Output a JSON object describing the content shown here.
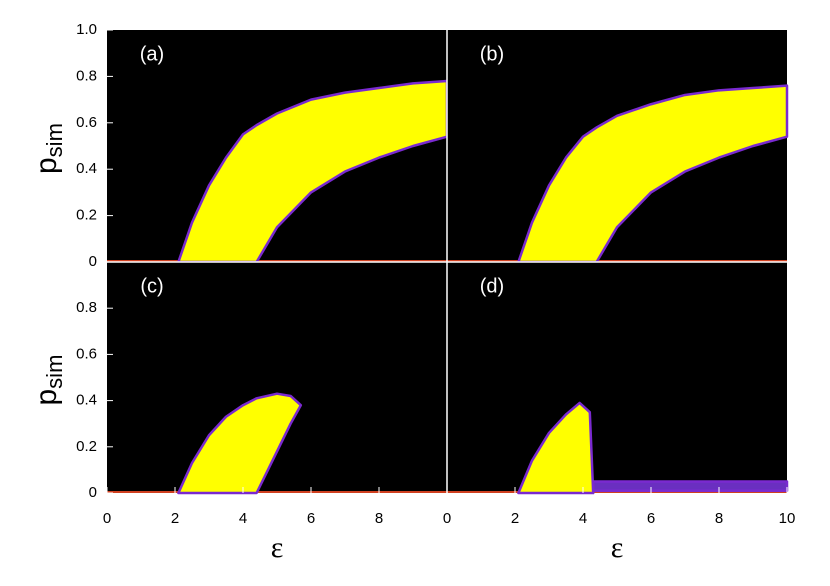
{
  "chart_data": [
    {
      "type": "band",
      "label": "(a)",
      "xlim": [
        0,
        10
      ],
      "ylim": [
        0,
        1
      ],
      "yticks": [
        0,
        0.2,
        0.4,
        0.6,
        0.8,
        {
          "value": 1,
          "label": "1.0"
        }
      ],
      "xticks": [],
      "ylabel": {
        "main": "p",
        "sub": "sim"
      },
      "bands": [
        {
          "color": "#ffff00",
          "x": [
            2.1,
            2.5,
            3,
            3.5,
            4,
            4.4,
            5,
            6,
            7,
            8,
            9,
            10
          ],
          "upper": [
            0,
            0.17,
            0.33,
            0.45,
            0.55,
            0.59,
            0.64,
            0.7,
            0.73,
            0.75,
            0.77,
            0.78
          ],
          "lower": [
            0,
            0,
            0,
            0,
            0,
            0,
            0.15,
            0.3,
            0.39,
            0.45,
            0.5,
            0.54
          ]
        }
      ]
    },
    {
      "type": "band",
      "label": "(b)",
      "xlim": [
        0,
        10
      ],
      "ylim": [
        0,
        1
      ],
      "yticks": [],
      "xticks": [],
      "bands": [
        {
          "color": "#ffff00",
          "x": [
            2.1,
            2.5,
            3,
            3.5,
            4,
            4.4,
            5,
            6,
            7,
            8,
            9,
            10
          ],
          "upper": [
            0,
            0.17,
            0.33,
            0.45,
            0.54,
            0.58,
            0.63,
            0.68,
            0.72,
            0.74,
            0.75,
            0.76
          ],
          "lower": [
            0,
            0,
            0,
            0,
            0,
            0,
            0.15,
            0.3,
            0.39,
            0.45,
            0.5,
            0.54
          ]
        }
      ]
    },
    {
      "type": "band",
      "label": "(c)",
      "xlim": [
        0,
        10
      ],
      "ylim": [
        0,
        1
      ],
      "yticks": [
        0,
        0.2,
        0.4,
        0.6,
        0.8
      ],
      "xticks": [
        0,
        2,
        4,
        6,
        8
      ],
      "ylabel": {
        "main": "p",
        "sub": "sim"
      },
      "xlabel": "ε",
      "bands": [
        {
          "color": "#ffff00",
          "x": [
            2.1,
            2.5,
            3,
            3.5,
            4,
            4.4,
            5,
            5.4,
            5.7
          ],
          "upper": [
            0,
            0.13,
            0.25,
            0.33,
            0.38,
            0.41,
            0.43,
            0.42,
            0.38
          ],
          "lower": [
            0,
            0,
            0,
            0,
            0,
            0,
            0.18,
            0.3,
            0.38
          ]
        }
      ]
    },
    {
      "type": "band",
      "label": "(d)",
      "xlim": [
        0,
        10
      ],
      "ylim": [
        0,
        1
      ],
      "yticks": [],
      "xticks": [
        0,
        2,
        4,
        6,
        8,
        10
      ],
      "xlabel": "ε",
      "bands": [
        {
          "color": "#ffff00",
          "x": [
            2.1,
            2.5,
            3,
            3.5,
            3.9,
            4.2,
            4.3
          ],
          "upper": [
            0,
            0.14,
            0.26,
            0.34,
            0.39,
            0.35,
            0
          ],
          "lower": [
            0,
            0,
            0,
            0,
            0,
            0,
            0
          ]
        },
        {
          "color": "#6a2fc0",
          "x": [
            4.3,
            10
          ],
          "upper": [
            0.05,
            0.05
          ],
          "lower": [
            0.01,
            0.01
          ]
        }
      ]
    }
  ]
}
